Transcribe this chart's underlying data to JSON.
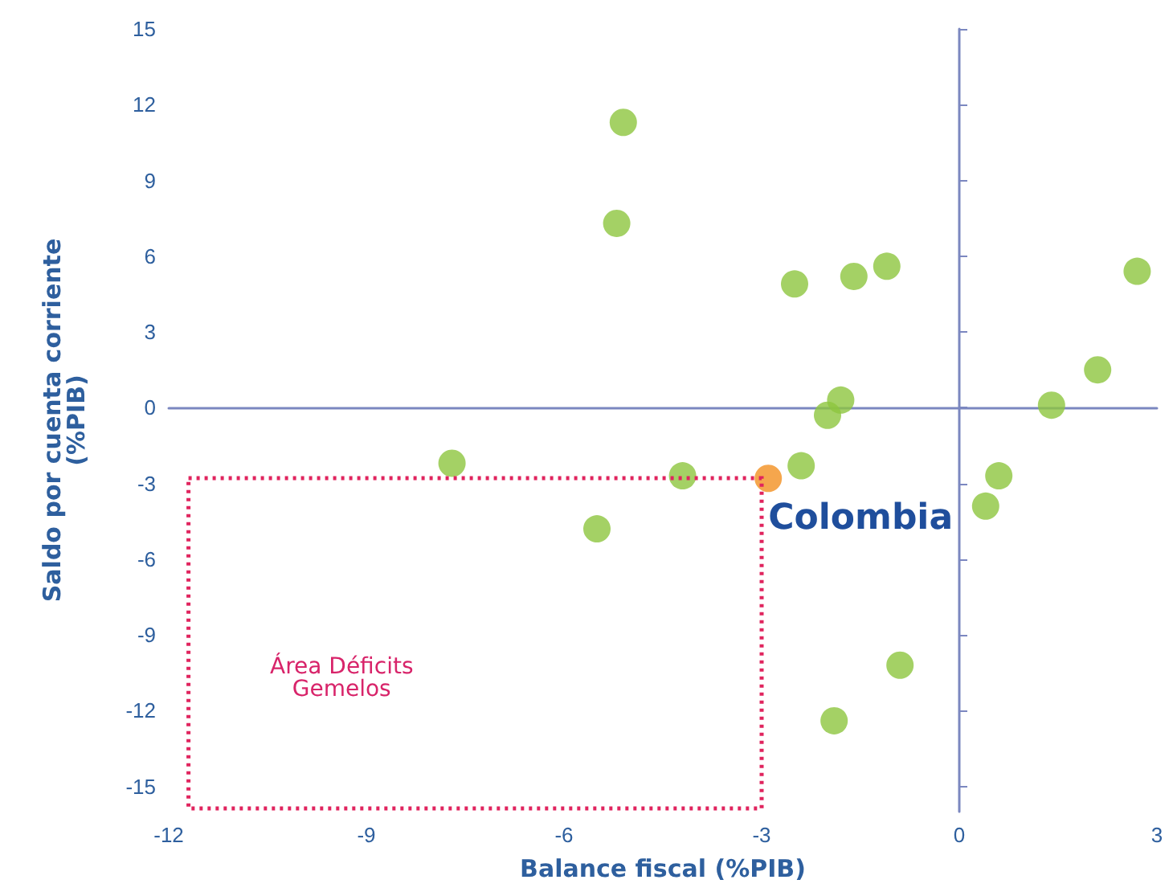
{
  "chart_data": {
    "type": "scatter",
    "xlabel": "Balance fiscal (%PIB)",
    "ylabel": "Saldo por cuenta corriente\n(%PIB)",
    "xlim": [
      -12,
      3
    ],
    "xticks": [
      -12,
      -9,
      -6,
      -3,
      0,
      3
    ],
    "ylim": [
      -16,
      15
    ],
    "yticks": [
      -15,
      -12,
      -9,
      -6,
      -3,
      0,
      3,
      6,
      9,
      12,
      15
    ],
    "marker": "circle",
    "series": [
      {
        "color": "#8dc63f",
        "x": [
          -7.7,
          -5.1,
          -5.2,
          -4.2,
          -5.5,
          -2.5,
          -2.4,
          -1.6,
          -1.1,
          -2.0,
          -1.8,
          -1.9,
          -0.9,
          0.4,
          0.6,
          1.4,
          2.1,
          2.7
        ],
        "values": [
          -2.2,
          11.3,
          7.3,
          -2.7,
          -4.8,
          4.9,
          -2.3,
          5.2,
          5.6,
          -0.3,
          0.3,
          -12.4,
          -10.2,
          -3.9,
          -2.7,
          0.1,
          1.5,
          5.4
        ]
      },
      {
        "color": "#f39020",
        "x": [
          -2.9
        ],
        "values": [
          -2.8
        ]
      }
    ],
    "annotations": [
      {
        "text": "Colombia",
        "x": -2.9,
        "y": -2.8
      },
      "Área Déficits\nGemelos"
    ]
  }
}
